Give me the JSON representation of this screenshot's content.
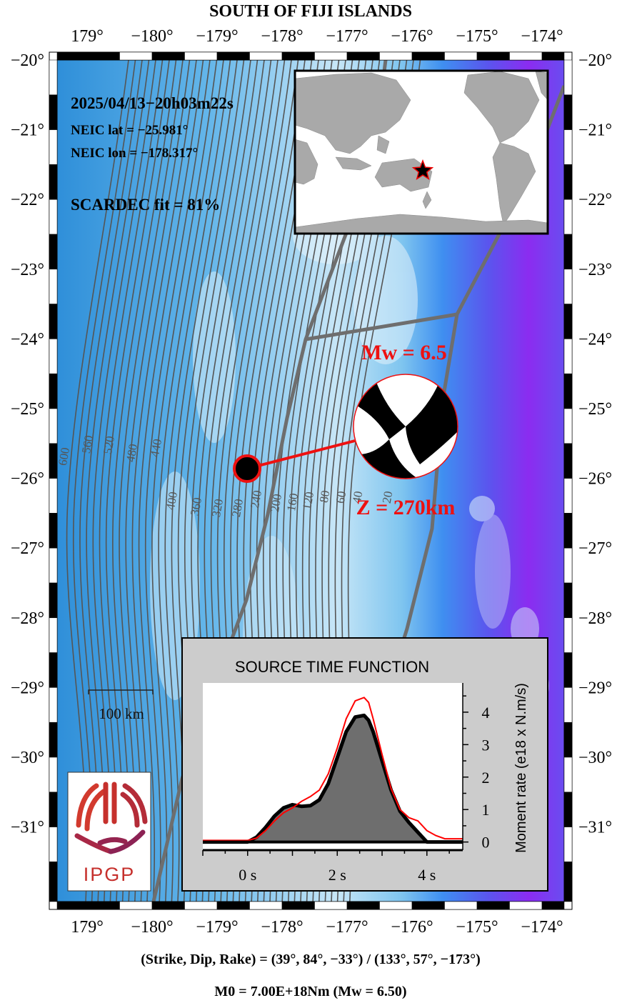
{
  "title": "SOUTH OF FIJI ISLANDS",
  "event": {
    "datetime": "2025/04/13−20h03m22s",
    "neic_lat": "NEIC lat  = −25.981°",
    "neic_lon": "NEIC lon = −178.317°",
    "fit": "SCARDEC fit = 81%",
    "magnitude_label": "Mw = 6.5",
    "depth_label": "Z = 270km",
    "epicenter": {
      "lon": -178.317,
      "lat": -25.981
    }
  },
  "map": {
    "lon_min": 178.55,
    "lon_max": 186.2,
    "lat_min": -32.0,
    "lat_max": -19.8,
    "lon_ticks": [
      {
        "value": 179,
        "label": "179°"
      },
      {
        "value": 180,
        "label": "−180°"
      },
      {
        "value": 181,
        "label": "−179°"
      },
      {
        "value": 182,
        "label": "−178°"
      },
      {
        "value": 183,
        "label": "−177°"
      },
      {
        "value": 184,
        "label": "−176°"
      },
      {
        "value": 185,
        "label": "−175°"
      },
      {
        "value": 186,
        "label": "−174°"
      }
    ],
    "lat_ticks": [
      {
        "value": -20,
        "label": "−20°"
      },
      {
        "value": -21,
        "label": "−21°"
      },
      {
        "value": -22,
        "label": "−22°"
      },
      {
        "value": -23,
        "label": "−23°"
      },
      {
        "value": -24,
        "label": "−24°"
      },
      {
        "value": -25,
        "label": "−25°"
      },
      {
        "value": -26,
        "label": "−26°"
      },
      {
        "value": -27,
        "label": "−27°"
      },
      {
        "value": -28,
        "label": "−28°"
      },
      {
        "value": -29,
        "label": "−29°"
      },
      {
        "value": -30,
        "label": "−30°"
      },
      {
        "value": -31,
        "label": "−31°"
      }
    ],
    "slab_contour_labels": [
      "600",
      "560",
      "520",
      "480",
      "440",
      "400",
      "360",
      "320",
      "280",
      "240",
      "200",
      "160",
      "120",
      "80",
      "60",
      "40",
      "20"
    ],
    "scale_bar_label": "100 km",
    "logo_text": "IPGP"
  },
  "inset": {
    "epicenter_marker": "star",
    "land_color": "#a9a9a9",
    "ocean_color": "#ffffff"
  },
  "focal_mechanism": {
    "strike_dip_rake_text": "(Strike, Dip, Rake) = (39°, 84°, −33°) / (133°, 57°, −173°)",
    "plane1": {
      "strike": 39,
      "dip": 84,
      "rake": -33
    },
    "plane2": {
      "strike": 133,
      "dip": 57,
      "rake": -173
    },
    "moment_text": "M0 = 7.00E+18Nm  (Mw = 6.50)"
  },
  "stf": {
    "title": "SOURCE TIME FUNCTION",
    "ylabel": "Moment rate (e18 x N.m/s)",
    "x_ticks": [
      {
        "value": 0,
        "label": "0 s"
      },
      {
        "value": 2,
        "label": "2 s"
      },
      {
        "value": 4,
        "label": "4 s"
      }
    ],
    "y_ticks": [
      {
        "value": 0,
        "label": "0"
      },
      {
        "value": 1,
        "label": "1"
      },
      {
        "value": 2,
        "label": "2"
      },
      {
        "value": 3,
        "label": "3"
      },
      {
        "value": 4,
        "label": "4"
      }
    ]
  },
  "chart_data": {
    "type": "area",
    "title": "SOURCE TIME FUNCTION",
    "xlabel": "",
    "ylabel": "Moment rate (e18 x N.m/s)",
    "xlim": [
      -1.0,
      4.8
    ],
    "ylim": [
      -0.25,
      4.9
    ],
    "grid": false,
    "series": [
      {
        "color": "#000000",
        "fill": "#6e6e6e",
        "x": [
          -1.0,
          0.0,
          0.2,
          0.4,
          0.6,
          0.8,
          1.0,
          1.2,
          1.4,
          1.6,
          1.8,
          2.0,
          2.2,
          2.4,
          2.6,
          2.7,
          2.8,
          3.0,
          3.2,
          3.4,
          3.6,
          3.8,
          3.9,
          4.0,
          4.8
        ],
        "y": [
          0.0,
          0.0,
          0.15,
          0.45,
          0.8,
          1.05,
          1.15,
          1.1,
          1.12,
          1.3,
          1.8,
          2.6,
          3.4,
          3.85,
          3.9,
          3.75,
          3.4,
          2.5,
          1.6,
          0.95,
          0.6,
          0.3,
          0.15,
          0.0,
          0.0
        ]
      },
      {
        "color": "#ff0000",
        "x": [
          -1.0,
          0.0,
          0.2,
          0.4,
          0.6,
          0.8,
          1.0,
          1.2,
          1.4,
          1.6,
          1.8,
          2.0,
          2.2,
          2.4,
          2.6,
          2.7,
          2.8,
          3.0,
          3.2,
          3.4,
          3.6,
          3.8,
          4.0,
          4.2,
          4.4,
          4.8
        ],
        "y": [
          0.05,
          0.05,
          0.12,
          0.35,
          0.65,
          0.9,
          1.05,
          1.25,
          1.4,
          1.6,
          2.1,
          2.9,
          3.8,
          4.35,
          4.45,
          4.3,
          3.8,
          2.7,
          1.65,
          1.0,
          0.75,
          0.65,
          0.35,
          0.2,
          0.1,
          0.1
        ]
      }
    ]
  }
}
